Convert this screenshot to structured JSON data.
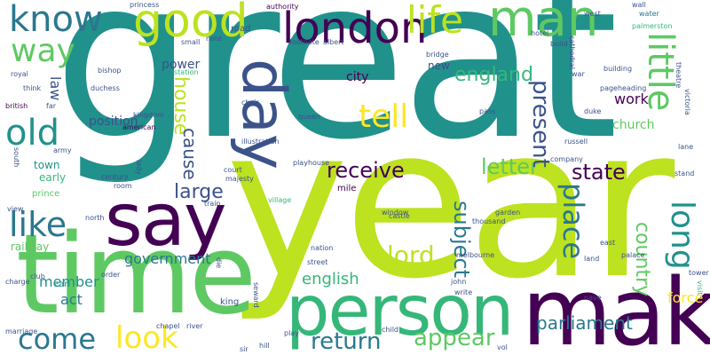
{
  "palette": {
    "lime": "#bde21f",
    "green": "#5ec962",
    "teal": "#21918c",
    "blue": "#3b528b",
    "purple": "#440154",
    "mint": "#35b779",
    "sea": "#2a788e",
    "yellow": "#fde725"
  },
  "words": {
    "great": "great",
    "year": "year",
    "time": "time",
    "person": "person",
    "make": "make",
    "say": "say",
    "good": "good",
    "know": "know",
    "london": "london",
    "life": "life",
    "man": "man",
    "little": "little",
    "way": "way",
    "day": "day",
    "old": "old",
    "like": "like",
    "tell": "tell",
    "house": "house",
    "cause": "cause",
    "receive": "receive",
    "letter": "letter",
    "state": "state",
    "place": "place",
    "present": "present",
    "subject": "subject",
    "long": "long",
    "country": "country",
    "lord": "lord",
    "come": "come",
    "look": "look",
    "return": "return",
    "appear": "appear",
    "parliament": "parliament",
    "england": "england",
    "large": "large",
    "work": "work",
    "church": "church",
    "government": "government",
    "english": "english",
    "member": "member",
    "act": "act",
    "force": "force",
    "position": "position",
    "power": "power",
    "city": "city",
    "new": "new",
    "law": "law",
    "town": "town",
    "early": "early",
    "railway": "railway",
    "prince": "prince",
    "earl": "earl",
    "king": "king",
    "royal": "royal",
    "think": "think",
    "british": "british",
    "american": "american",
    "mile": "mile",
    "authority": "authority",
    "road": "road",
    "footnote": "footnote",
    "hotel": "hotel",
    "west": "west",
    "water": "water",
    "palmerston": "palmerston",
    "build": "build",
    "building": "building",
    "pageheading": "pageheading",
    "victoria": "victoria",
    "russell": "russell",
    "street": "street",
    "castle": "castle",
    "village": "village",
    "nation": "nation",
    "thousand": "thousand",
    "john": "john",
    "write": "write",
    "land": "land",
    "visit": "visit",
    "stand": "stand",
    "court": "court",
    "majesty": "majesty",
    "playhouse": "playhouse",
    "illustration": "illustration",
    "kingdom": "kingdom",
    "army": "army",
    "far": "far",
    "duchess": "duchess",
    "bishop": "bishop",
    "small": "small",
    "note": "note",
    "bridge": "bridge",
    "station": "station",
    "pass": "pass",
    "queen": "queen",
    "choir": "choir",
    "war": "war",
    "century": "century",
    "room": "room",
    "train": "train",
    "garden": "garden",
    "east": "east",
    "melbourne": "melbourne",
    "nave": "nave",
    "order": "order",
    "club": "club",
    "hill": "hill",
    "sir": "sir",
    "river": "river",
    "chapel": "chapel",
    "child": "child",
    "vol": "vol",
    "seward": "seward",
    "die": "die",
    "view": "view",
    "lane": "lane",
    "theatre": "theatre",
    "cathedral": "cathedral",
    "princess": "princess",
    "duke": "duke",
    "south": "south",
    "tower": "tower",
    "palace": "palace",
    "company": "company",
    "play": "play",
    "window": "window",
    "albert": "albert",
    "north": "north",
    "wall": "wall",
    "marriage": "marriage",
    "lady": "lady",
    "charge": "charge"
  }
}
